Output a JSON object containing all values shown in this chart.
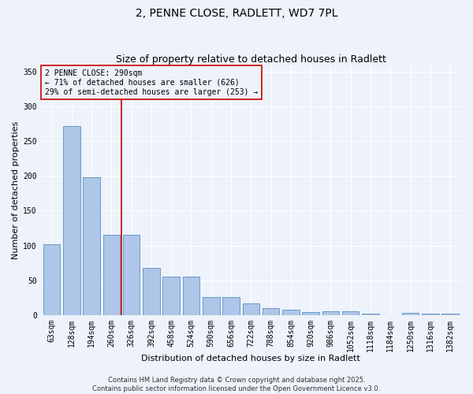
{
  "title1": "2, PENNE CLOSE, RADLETT, WD7 7PL",
  "title2": "Size of property relative to detached houses in Radlett",
  "xlabel": "Distribution of detached houses by size in Radlett",
  "ylabel": "Number of detached properties",
  "categories": [
    "63sqm",
    "128sqm",
    "194sqm",
    "260sqm",
    "326sqm",
    "392sqm",
    "458sqm",
    "524sqm",
    "590sqm",
    "656sqm",
    "722sqm",
    "788sqm",
    "854sqm",
    "920sqm",
    "986sqm",
    "1052sqm",
    "1118sqm",
    "1184sqm",
    "1250sqm",
    "1316sqm",
    "1382sqm"
  ],
  "values": [
    102,
    272,
    198,
    115,
    115,
    68,
    55,
    55,
    26,
    26,
    17,
    10,
    8,
    4,
    5,
    5,
    2,
    0,
    3,
    2,
    2
  ],
  "bar_color": "#aec6e8",
  "bar_edge_color": "#5a8fc2",
  "bar_width": 0.85,
  "ylim": [
    0,
    360
  ],
  "yticks": [
    0,
    50,
    100,
    150,
    200,
    250,
    300,
    350
  ],
  "red_line_x": 3.5,
  "annotation_text": "2 PENNE CLOSE: 290sqm\n← 71% of detached houses are smaller (626)\n29% of semi-detached houses are larger (253) →",
  "annotation_box_color": "#cc0000",
  "background_color": "#eef2fa",
  "grid_color": "#ffffff",
  "footer_text": "Contains HM Land Registry data © Crown copyright and database right 2025.\nContains public sector information licensed under the Open Government Licence v3.0.",
  "title1_fontsize": 10,
  "title2_fontsize": 9,
  "axis_label_fontsize": 8,
  "tick_fontsize": 7,
  "annotation_fontsize": 7,
  "footer_fontsize": 6
}
